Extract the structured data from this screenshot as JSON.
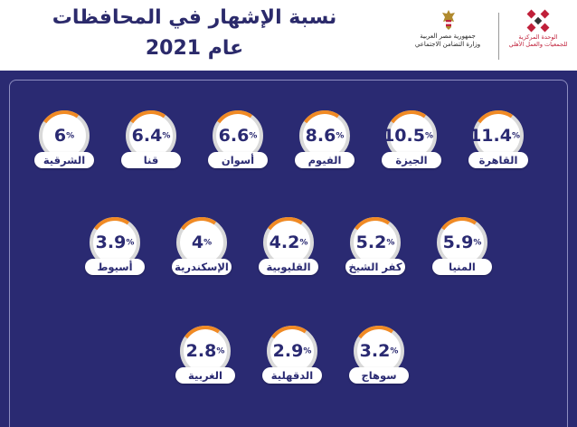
{
  "header": {
    "title": "نسبة الإشهار في المحافظات",
    "year": "عام 2021",
    "unit_logo_text": "الوحدة المركزية للجمعيات والعمل الأهلي",
    "ministry_text_1": "جمهورية مصر العربية",
    "ministry_text_2": "وزارة التضامن الاجتماعي"
  },
  "percent_symbol": "%",
  "colors": {
    "panel": "#2a2a72",
    "accent": "#f08a24",
    "ring": "#d9d9d9",
    "text": "#2a2a72",
    "logo_red": "#c0203a"
  },
  "governorates": [
    {
      "name": "القاهرة",
      "value": "11.4"
    },
    {
      "name": "الجيزة",
      "value": "10.5"
    },
    {
      "name": "الفيوم",
      "value": "8.6"
    },
    {
      "name": "أسوان",
      "value": "6.6"
    },
    {
      "name": "قنا",
      "value": "6.4"
    },
    {
      "name": "الشرقية",
      "value": "6"
    },
    {
      "name": "المنيا",
      "value": "5.9"
    },
    {
      "name": "كفر الشيخ",
      "value": "5.2"
    },
    {
      "name": "القليوبية",
      "value": "4.2"
    },
    {
      "name": "الإسكندرية",
      "value": "4"
    },
    {
      "name": "أسيوط",
      "value": "3.9"
    },
    {
      "name": "سوهاج",
      "value": "3.2"
    },
    {
      "name": "الدقهلية",
      "value": "2.9"
    },
    {
      "name": "الغربية",
      "value": "2.8"
    }
  ]
}
